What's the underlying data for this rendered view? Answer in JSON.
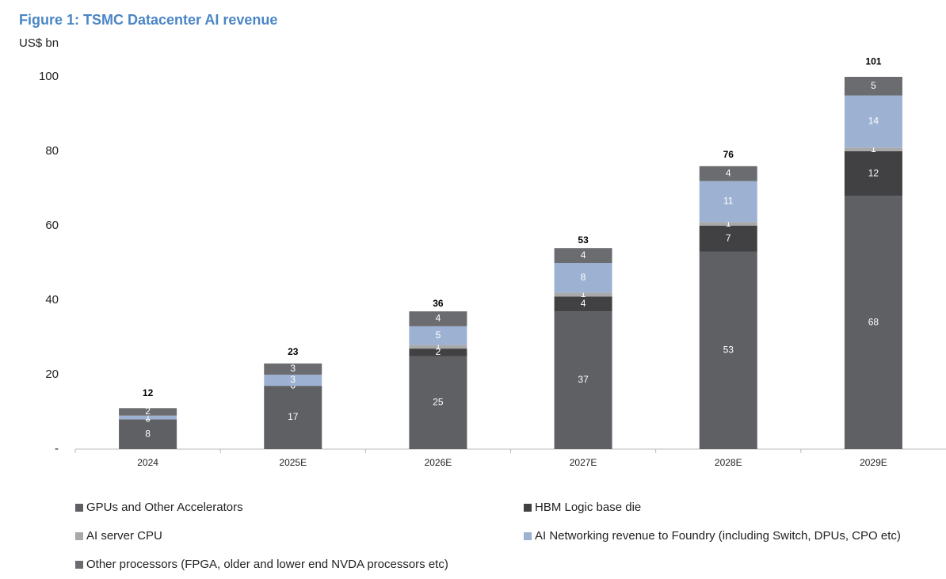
{
  "chart_data": {
    "type": "stacked_bar",
    "title": "Figure 1: TSMC Datacenter AI revenue",
    "y_label": "US$ bn",
    "categories": [
      "2024",
      "2025E",
      "2026E",
      "2027E",
      "2028E",
      "2029E"
    ],
    "series": [
      {
        "name": "GPUs and Other Accelerators",
        "color": "#5f6063",
        "values": [
          8,
          17,
          25,
          37,
          53,
          68
        ]
      },
      {
        "name": "HBM Logic base die",
        "color": "#414143",
        "values": [
          0,
          0,
          2,
          4,
          7,
          12
        ]
      },
      {
        "name": "AI server CPU",
        "color": "#a8a9ab",
        "values": [
          0,
          0,
          1,
          1,
          1,
          1
        ]
      },
      {
        "name": "AI Networking revenue to Foundry (including Switch, DPUs, CPO etc)",
        "color": "#9db2d2",
        "values": [
          1,
          3,
          5,
          8,
          11,
          14
        ]
      },
      {
        "name": "Other processors (FPGA, older and lower end NVDA processors etc)",
        "color": "#6b6c6f",
        "values": [
          2,
          3,
          4,
          4,
          4,
          5
        ]
      }
    ],
    "totals": [
      12,
      23,
      36,
      53,
      76,
      101
    ],
    "ylim": [
      0,
      100
    ],
    "yticks": [
      {
        "value": 0,
        "label": "-"
      },
      20,
      40,
      60,
      80,
      100
    ]
  }
}
